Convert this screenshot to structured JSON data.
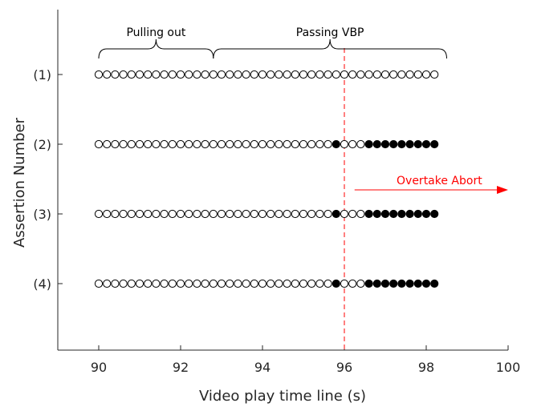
{
  "chart_data": {
    "type": "scatter",
    "xlabel": "Video play time line (s)",
    "ylabel": "Assertion Number",
    "xlim": [
      89,
      100
    ],
    "xticks": [
      90,
      92,
      94,
      96,
      98,
      100
    ],
    "xtick_labels": [
      "90",
      "92",
      "94",
      "96",
      "98",
      "100"
    ],
    "ytick_labels": [
      "(1)",
      "(2)",
      "(3)",
      "(4)"
    ],
    "grid": false,
    "rows": [
      {
        "label": "(1)",
        "x_start": 90.0,
        "x_end": 98.2,
        "step": 0.2,
        "filled_x": []
      },
      {
        "label": "(2)",
        "x_start": 90.0,
        "x_end": 98.2,
        "step": 0.2,
        "filled_x": [
          95.8,
          96.6,
          96.8,
          97.0,
          97.2,
          97.4,
          97.6,
          97.8,
          98.0,
          98.2
        ]
      },
      {
        "label": "(3)",
        "x_start": 90.0,
        "x_end": 98.2,
        "step": 0.2,
        "filled_x": [
          95.8,
          96.6,
          96.8,
          97.0,
          97.2,
          97.4,
          97.6,
          97.8,
          98.0,
          98.2
        ]
      },
      {
        "label": "(4)",
        "x_start": 90.0,
        "x_end": 98.2,
        "step": 0.2,
        "filled_x": [
          95.8,
          96.6,
          96.8,
          97.0,
          97.2,
          97.4,
          97.6,
          97.8,
          98.0,
          98.2
        ]
      }
    ],
    "vline": {
      "x": 96.0,
      "color": "#ff0000",
      "style": "dashed"
    },
    "braces": [
      {
        "label": "Pulling out",
        "x_start": 90.0,
        "x_end": 92.8
      },
      {
        "label": "Passing VBP",
        "x_start": 92.8,
        "x_end": 98.5
      }
    ],
    "arrow": {
      "label": "Overtake Abort",
      "x_start": 96.25,
      "x_end": 100.0,
      "color": "#ff0000"
    }
  }
}
